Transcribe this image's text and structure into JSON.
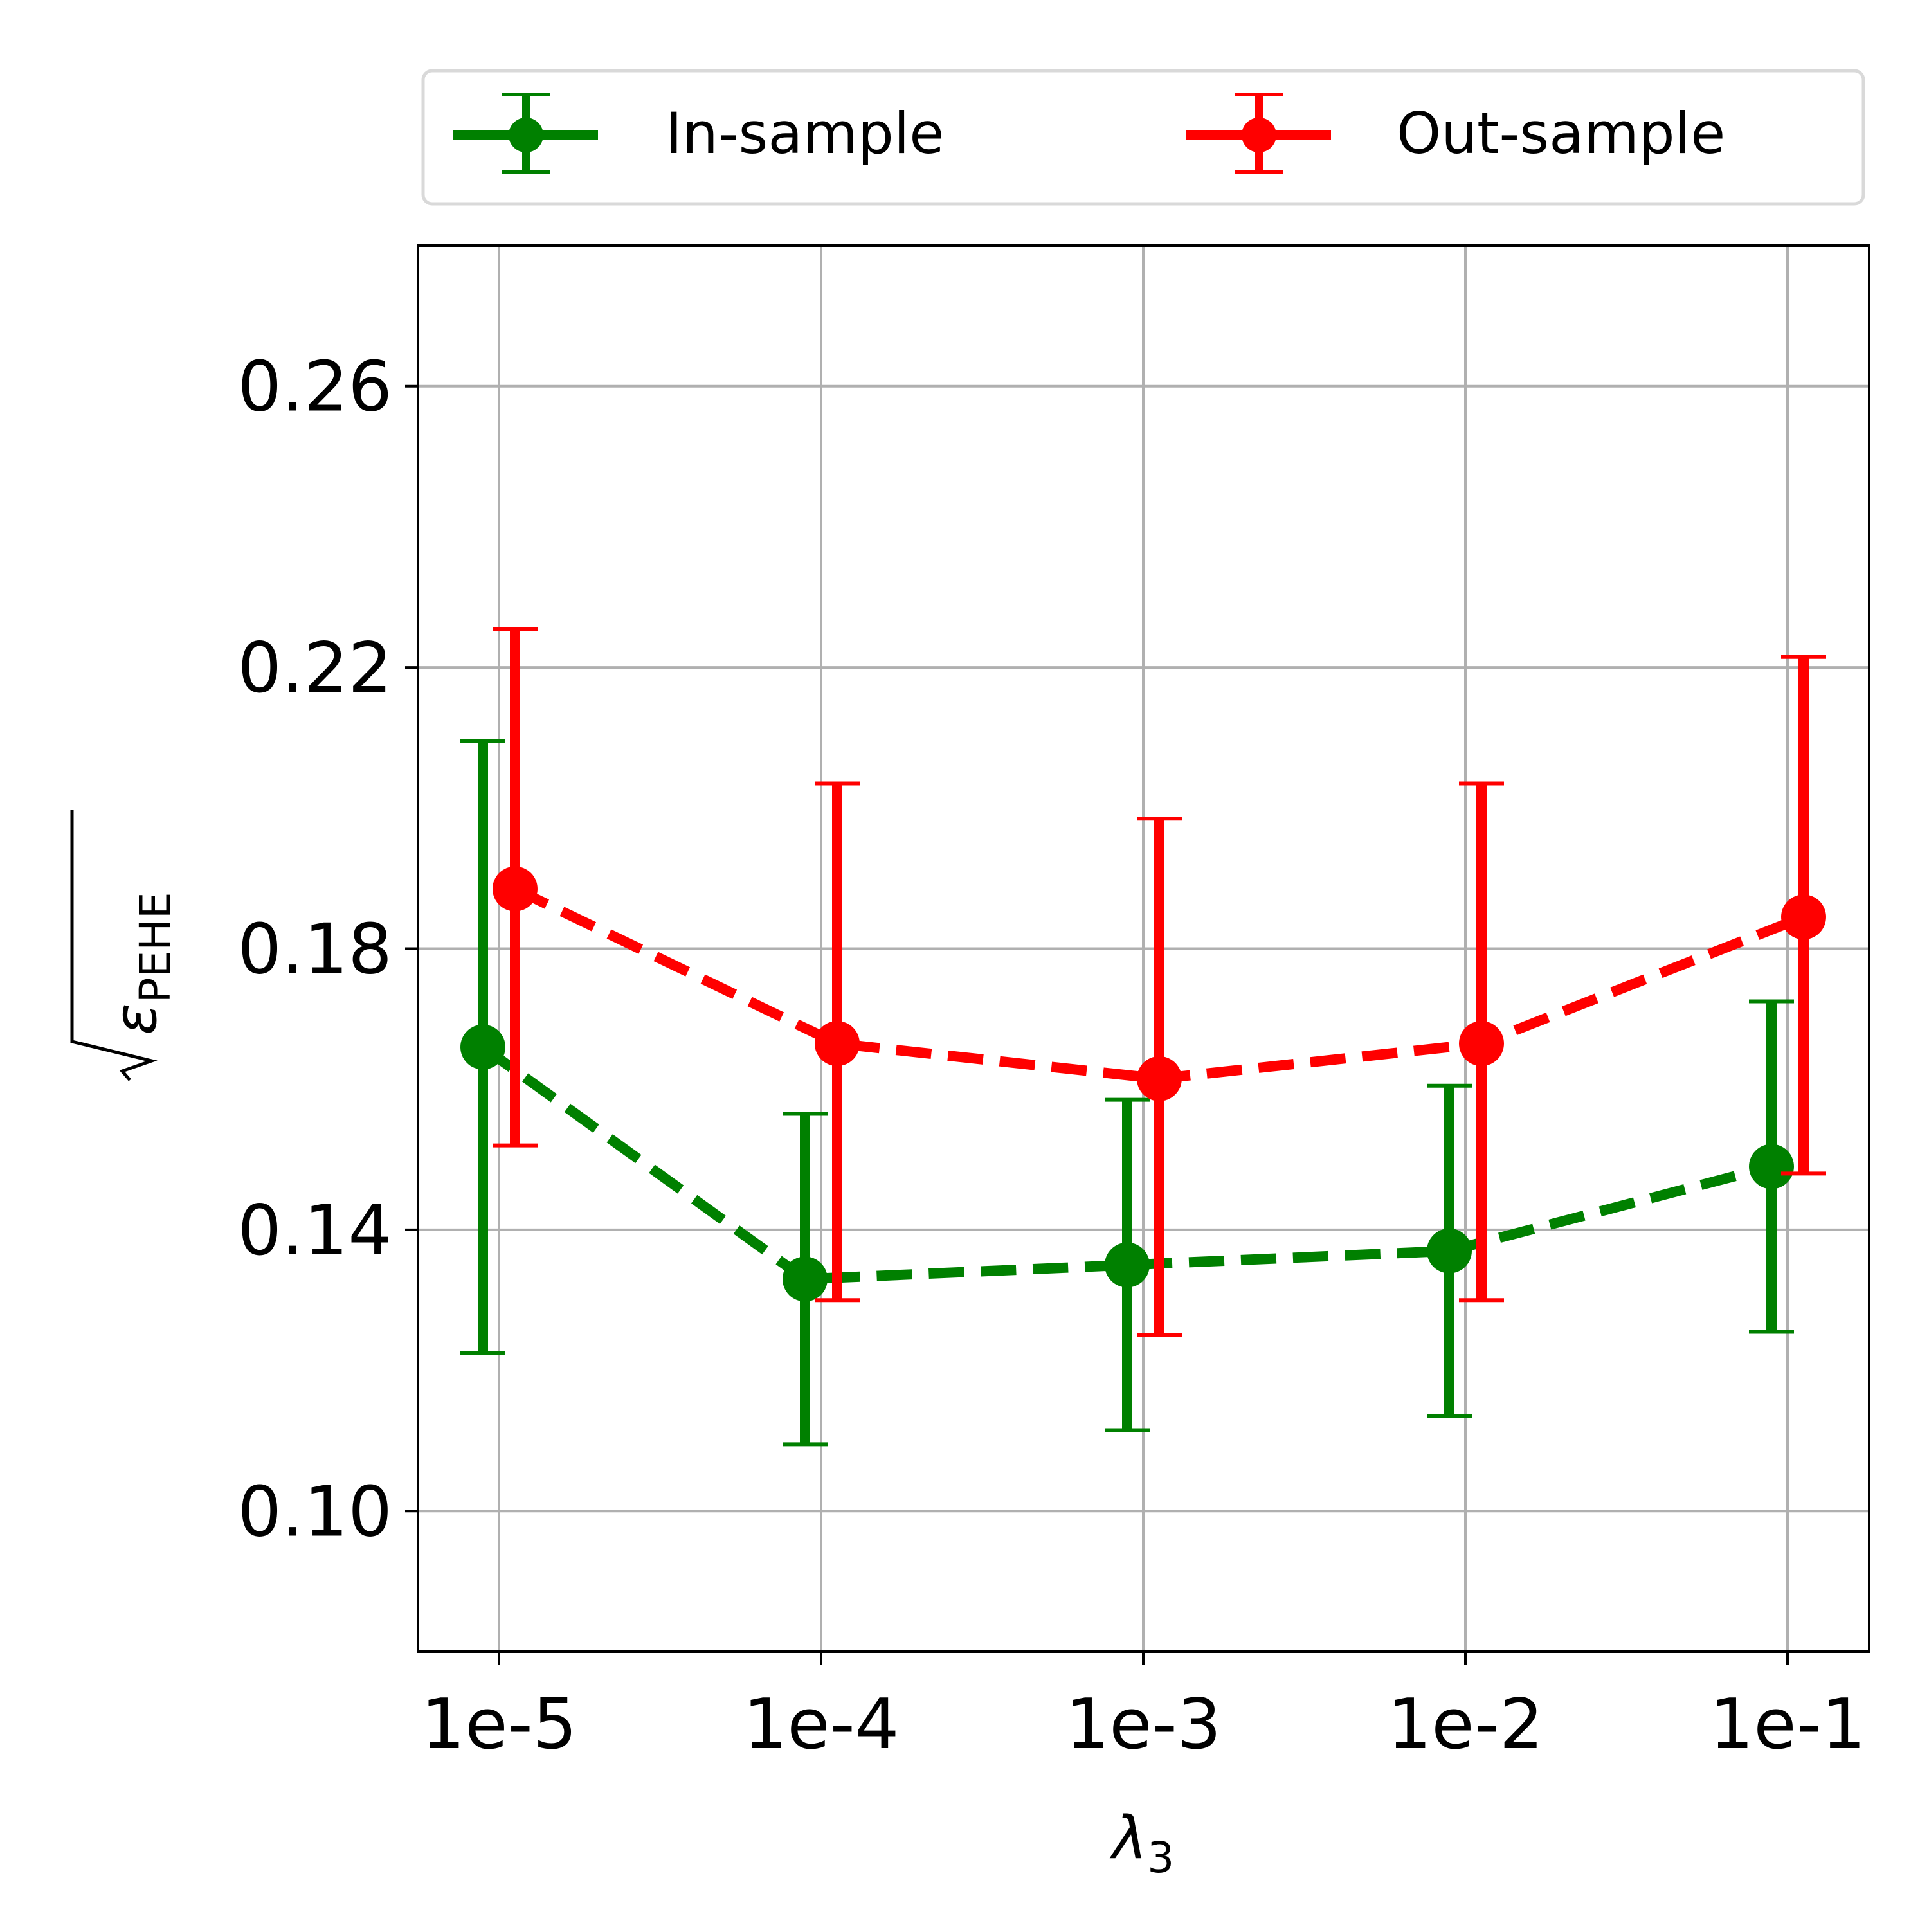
{
  "chart_data": {
    "type": "line",
    "xlabel_symbol": "λ",
    "xlabel_subscript": "3",
    "ylabel_symbol": "ε",
    "ylabel_subscript": "PEHE",
    "categories": [
      "1e-5",
      "1e-4",
      "1e-3",
      "1e-2",
      "1e-1"
    ],
    "yticks": [
      "0.10",
      "0.14",
      "0.18",
      "0.22",
      "0.26"
    ],
    "ytick_values": [
      0.1,
      0.14,
      0.18,
      0.22,
      0.26
    ],
    "ylim": [
      0.08,
      0.28
    ],
    "grid": true,
    "legend_position": "top",
    "error_bars": true,
    "series": [
      {
        "name": "In-sample",
        "color": "#008000",
        "values": [
          0.166,
          0.133,
          0.135,
          0.137,
          0.149
        ],
        "err_low": [
          0.1225,
          0.1095,
          0.1115,
          0.1135,
          0.1255
        ],
        "err_high": [
          0.2095,
          0.1565,
          0.1585,
          0.1605,
          0.1725
        ]
      },
      {
        "name": "Out-sample",
        "color": "#ff0000",
        "values": [
          0.1885,
          0.1665,
          0.1615,
          0.1665,
          0.1845
        ],
        "err_low": [
          0.152,
          0.13,
          0.125,
          0.13,
          0.148
        ],
        "err_high": [
          0.2255,
          0.2035,
          0.1985,
          0.2035,
          0.2215
        ]
      }
    ]
  }
}
